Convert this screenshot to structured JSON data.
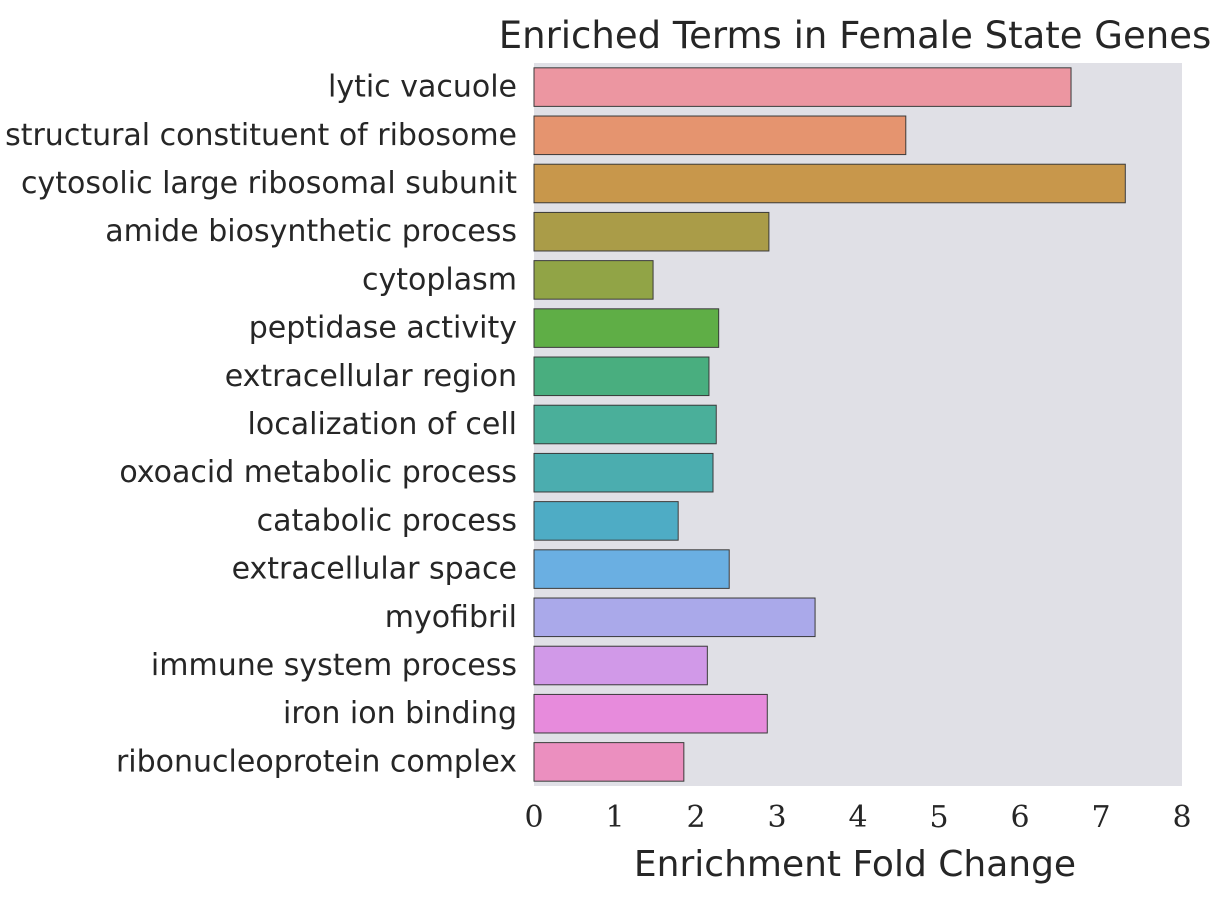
{
  "chart_data": {
    "type": "bar",
    "orientation": "horizontal",
    "title": "Enriched Terms in Female State Genes",
    "xlabel": "Enrichment Fold Change",
    "ylabel": "",
    "xlim": [
      0,
      8
    ],
    "xticks": [
      "0",
      "1",
      "2",
      "3",
      "4",
      "5",
      "6",
      "7",
      "8"
    ],
    "grid": false,
    "legend": "none",
    "plot_background": "#e0e0e6",
    "bar_edge_color": "#3a3a3a",
    "categories": [
      "lytic vacuole",
      "structural constituent of ribosome",
      "cytosolic large ribosomal subunit",
      "amide biosynthetic process",
      "cytoplasm",
      "peptidase activity",
      "extracellular region",
      "localization of cell",
      "oxoacid metabolic process",
      "catabolic process",
      "extracellular space",
      "myofibril",
      "immune system process",
      "iron ion binding",
      "ribonucleoprotein complex"
    ],
    "values": [
      6.63,
      4.59,
      7.3,
      2.9,
      1.47,
      2.28,
      2.16,
      2.25,
      2.21,
      1.78,
      2.41,
      3.47,
      2.14,
      2.88,
      1.85
    ],
    "colors": [
      "#ec96a1",
      "#e5946f",
      "#c8974b",
      "#aa9c48",
      "#91a446",
      "#5fae46",
      "#49ae7f",
      "#4aaf9a",
      "#4badaf",
      "#4eacc5",
      "#6aafe2",
      "#aaa9ea",
      "#d199e8",
      "#e78bdc",
      "#eb8fbf"
    ]
  }
}
